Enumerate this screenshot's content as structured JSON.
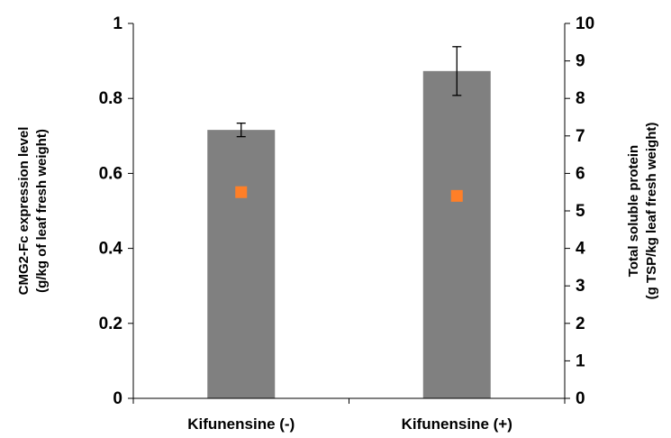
{
  "chart_data": {
    "type": "bar",
    "categories": [
      "Kifunensine (-)",
      "Kifunensine (+)"
    ],
    "left_axis": {
      "label_lines": [
        "CMG2-Fc expression level",
        "(g/kg of leaf fresh weight)"
      ],
      "ylim": [
        0,
        1
      ],
      "ticks": [
        "0",
        "0.2",
        "0.4",
        "0.6",
        "0.8",
        "1"
      ]
    },
    "right_axis": {
      "label_lines": [
        "Total soluble protein",
        "(g TSP/kg leaf fresh weight)"
      ],
      "ylim": [
        0,
        10
      ],
      "ticks": [
        "0",
        "1",
        "2",
        "3",
        "4",
        "5",
        "6",
        "7",
        "8",
        "9",
        "10"
      ]
    },
    "series": [
      {
        "type": "bar",
        "axis": "left",
        "values": [
          0.716,
          0.873
        ],
        "error": [
          0.018,
          0.065
        ],
        "color": "#808080"
      },
      {
        "type": "scatter",
        "axis": "right",
        "values": [
          5.5,
          5.4
        ],
        "color": "#ff7f27",
        "marker": "square"
      }
    ],
    "grid": false
  }
}
